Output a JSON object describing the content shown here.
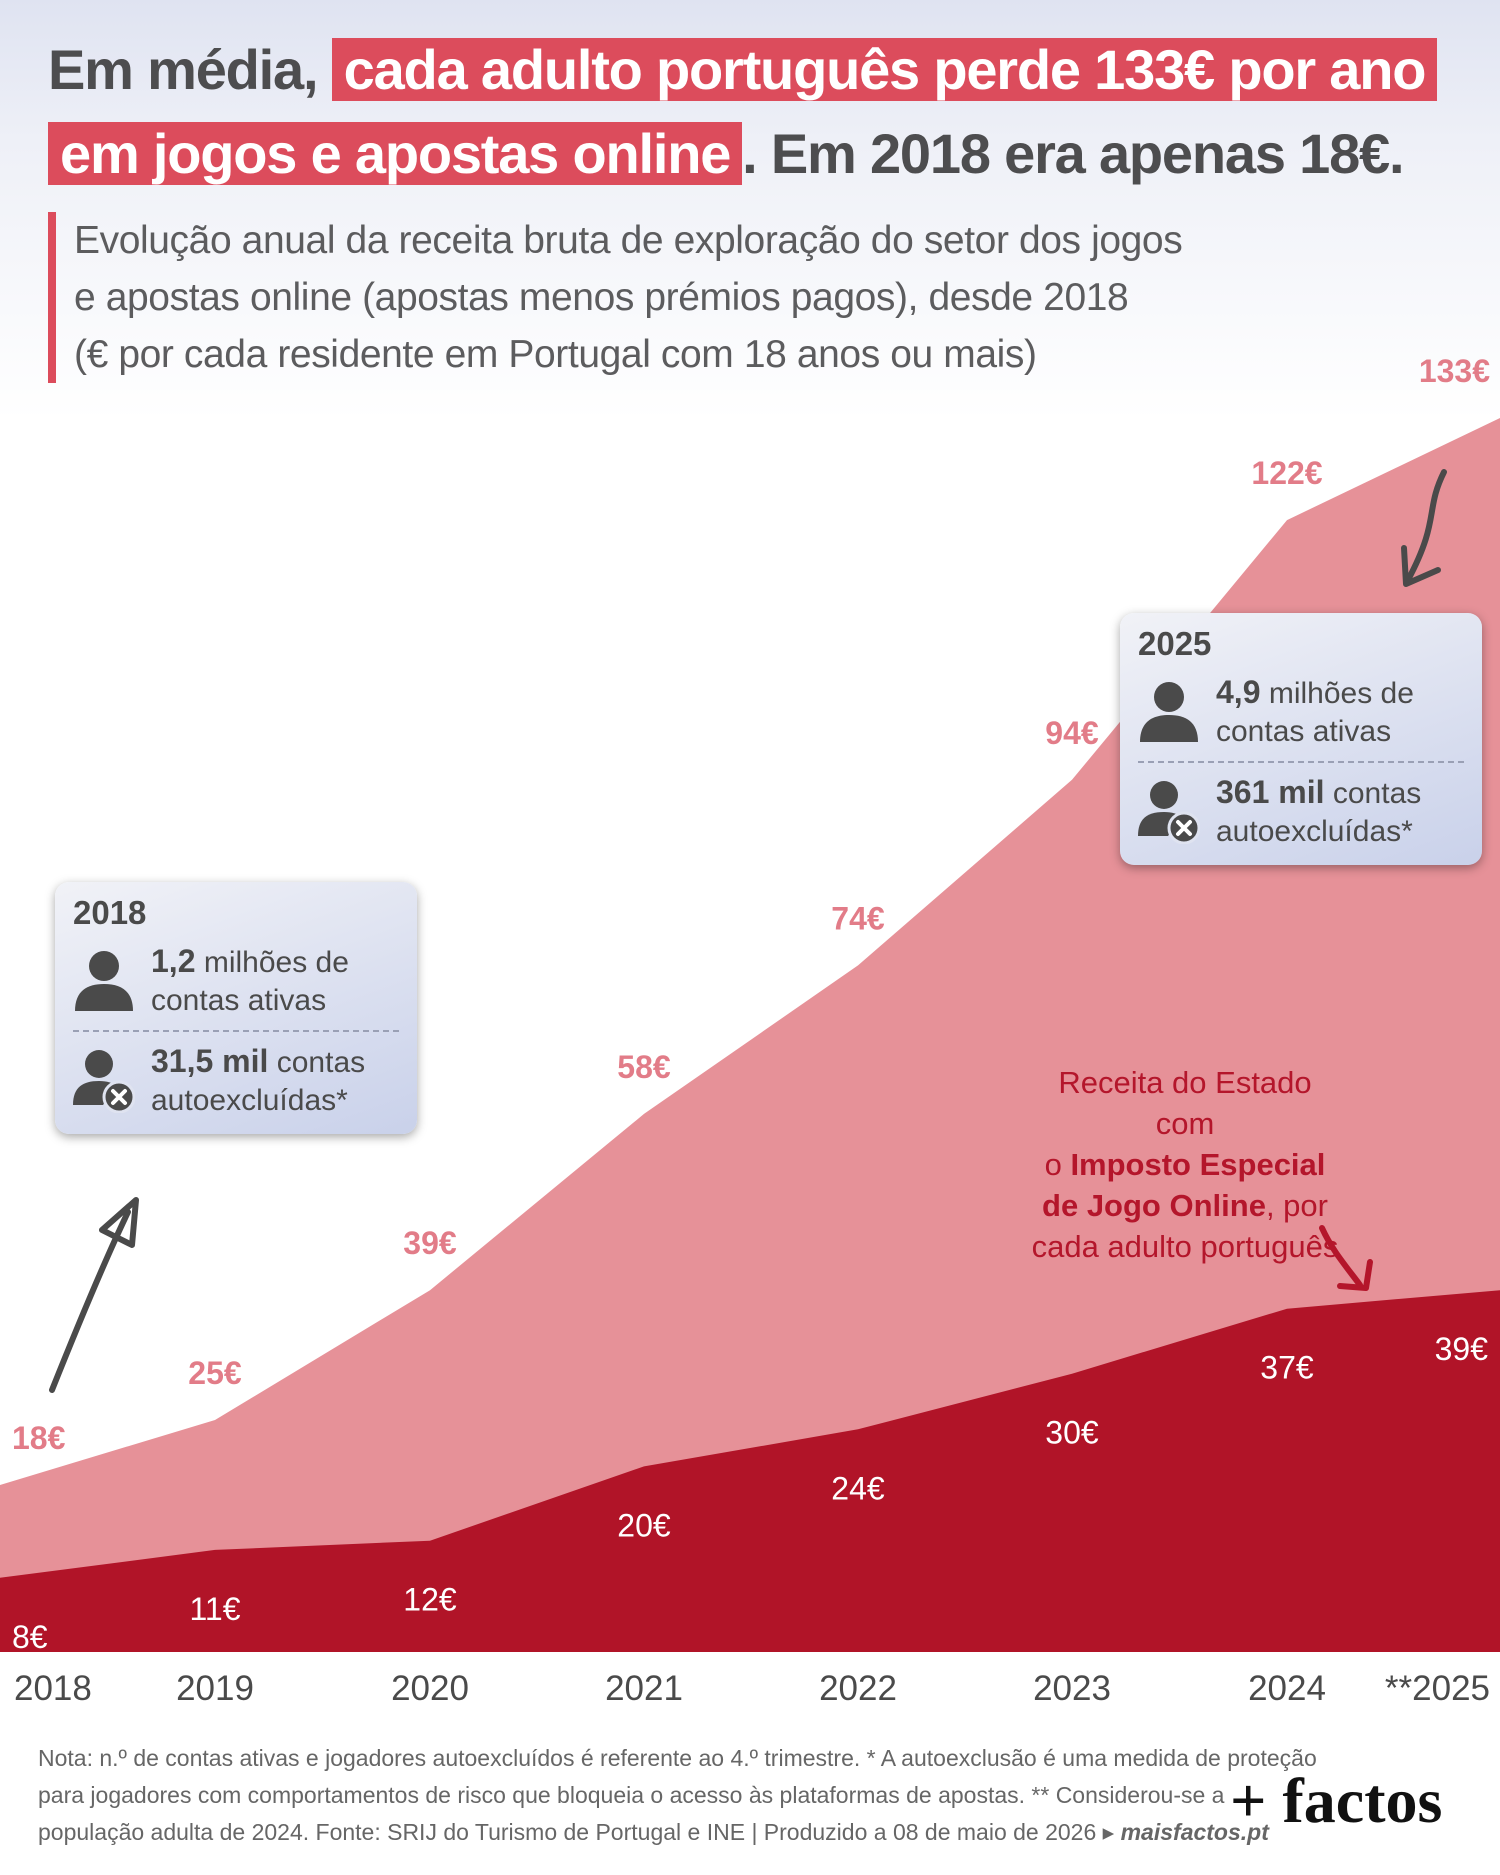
{
  "headline": {
    "line1_plain": "Em média, ",
    "line1_highlight": "cada adulto português perde 133€ por ano",
    "line2_highlight": "em jogos e apostas online",
    "line2_plain": ". Em 2018 era apenas 18€."
  },
  "subtitle": {
    "line1": "Evolução anual da receita bruta de exploração do setor dos jogos",
    "line2": "e apostas online (apostas menos prémios pagos), desde 2018",
    "line3": "(€ por cada residente em Portugal com 18 anos ou mais)"
  },
  "colors": {
    "accent": "#dc4c5c",
    "total_area": "#e69198",
    "tax_area": "#b11428",
    "arrow_gray": "#4a4a4a",
    "annotation_red": "#b4162b"
  },
  "chart_data": {
    "type": "area",
    "x": [
      "2018",
      "2019",
      "2020",
      "2021",
      "2022",
      "2023",
      "2024",
      "**2025"
    ],
    "series": [
      {
        "role": "total",
        "values": [
          18,
          25,
          39,
          58,
          74,
          94,
          122,
          133
        ],
        "labels": [
          "18€",
          "25€",
          "39€",
          "58€",
          "74€",
          "94€",
          "122€",
          "133€"
        ]
      },
      {
        "role": "tax",
        "values": [
          8,
          11,
          12,
          20,
          24,
          30,
          37,
          39
        ],
        "labels": [
          "8€",
          "11€",
          "12€",
          "20€",
          "24€",
          "30€",
          "37€",
          "39€"
        ]
      }
    ],
    "ylim": [
      0,
      133
    ],
    "grid": false,
    "legend": "none"
  },
  "box2018": {
    "year": "2018",
    "accounts_value": "1,2",
    "accounts_unit": "milhões de",
    "accounts_line2": "contas ativas",
    "excluded_value": "31,5 mil",
    "excluded_unit": "contas",
    "excluded_line2": "autoexcluídas*",
    "user_icon": "user-icon",
    "excluded_icon": "user-excluded-icon"
  },
  "box2025": {
    "year": "2025",
    "accounts_value": "4,9",
    "accounts_unit": "milhões de",
    "accounts_line2": "contas ativas",
    "excluded_value": "361 mil",
    "excluded_unit": "contas",
    "excluded_line2": "autoexcluídas*",
    "user_icon": "user-icon",
    "excluded_icon": "user-excluded-icon"
  },
  "annotation": {
    "line1": "Receita do Estado com",
    "line2_pre": "o ",
    "line2_bold": "Imposto Especial",
    "line3_bold": "de Jogo Online",
    "line3_post": ", por",
    "line4": "cada adulto português"
  },
  "note": {
    "line1": "Nota: n.º de contas ativas e jogadores autoexcluídos é referente ao 4.º trimestre. * A autoexclusão é uma medida de proteção",
    "line2": "para jogadores com comportamentos de risco que bloqueia o acesso às plataformas de apostas. ** Considerou-se a",
    "line3": "população adulta de 2024. Fonte: SRIJ do Turismo de Portugal e INE | Produzido a 08 de maio de 2026 ▸ ",
    "site": "maisfactos.pt"
  },
  "logo": "+ factos"
}
